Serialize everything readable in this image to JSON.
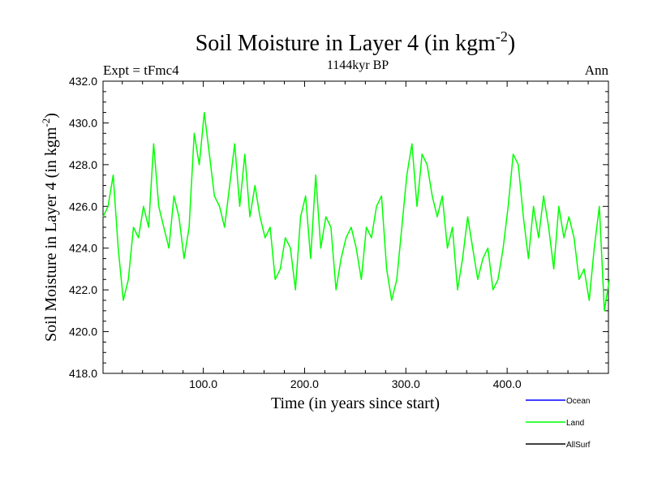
{
  "chart_data": {
    "type": "line",
    "title": "Soil Moisture in Layer 4 (in kgm",
    "title_sup": "-2",
    "title_close": ")",
    "subtitle": "1144kyr BP",
    "left_label": "Expt = tFmc4",
    "right_label": "Ann",
    "xlabel": "Time (in years since start)",
    "ylabel": "Soil Moisture in Layer 4 (in kgm",
    "ylabel_sup": "-2",
    "ylabel_close": ")",
    "xlim": [
      1,
      500
    ],
    "ylim": [
      418.0,
      432.0
    ],
    "x_ticks": [
      100,
      200,
      300,
      400
    ],
    "x_tick_labels": [
      "100.0",
      "200.0",
      "300.0",
      "400.0"
    ],
    "y_ticks": [
      418,
      420,
      422,
      424,
      426,
      428,
      430,
      432
    ],
    "y_tick_labels": [
      "418.0",
      "420.0",
      "422.0",
      "424.0",
      "426.0",
      "428.0",
      "430.0",
      "432.0"
    ],
    "legend": [
      {
        "name": "Ocean",
        "color": "#0000ff"
      },
      {
        "name": "Land",
        "color": "#00ff00"
      },
      {
        "name": "AllSurf",
        "color": "#000000"
      }
    ],
    "series": [
      {
        "name": "Land",
        "color": "#00ff00",
        "x_start": 1,
        "x_step": 5,
        "values": [
          425.5,
          426.0,
          427.5,
          424.0,
          421.5,
          422.5,
          425.0,
          424.5,
          426.0,
          425.0,
          429.0,
          426.0,
          425.0,
          424.0,
          426.5,
          425.5,
          423.5,
          425.0,
          429.5,
          428.0,
          430.5,
          428.5,
          426.5,
          426.0,
          425.0,
          427.0,
          429.0,
          426.0,
          428.5,
          425.5,
          427.0,
          425.5,
          424.5,
          425.0,
          422.5,
          423.0,
          424.5,
          424.0,
          422.0,
          425.5,
          426.5,
          423.5,
          427.5,
          424.0,
          425.5,
          425.0,
          422.0,
          423.5,
          424.5,
          425.0,
          424.0,
          422.5,
          425.0,
          424.5,
          426.0,
          426.5,
          423.0,
          421.5,
          422.5,
          425.0,
          427.5,
          429.0,
          426.0,
          428.5,
          428.0,
          426.5,
          425.5,
          426.5,
          424.0,
          425.0,
          422.0,
          423.5,
          425.5,
          424.0,
          422.5,
          423.5,
          424.0,
          422.0,
          422.5,
          424.0,
          426.0,
          428.5,
          428.0,
          425.5,
          423.5,
          426.0,
          424.5,
          426.5,
          425.0,
          423.0,
          426.0,
          424.5,
          425.5,
          424.5,
          422.5,
          423.0,
          421.5,
          424.0,
          426.0,
          421.0,
          422.5
        ]
      },
      {
        "name": "Ocean",
        "color": "#0000ff",
        "values": []
      },
      {
        "name": "AllSurf",
        "color": "#000000",
        "values": []
      }
    ]
  }
}
